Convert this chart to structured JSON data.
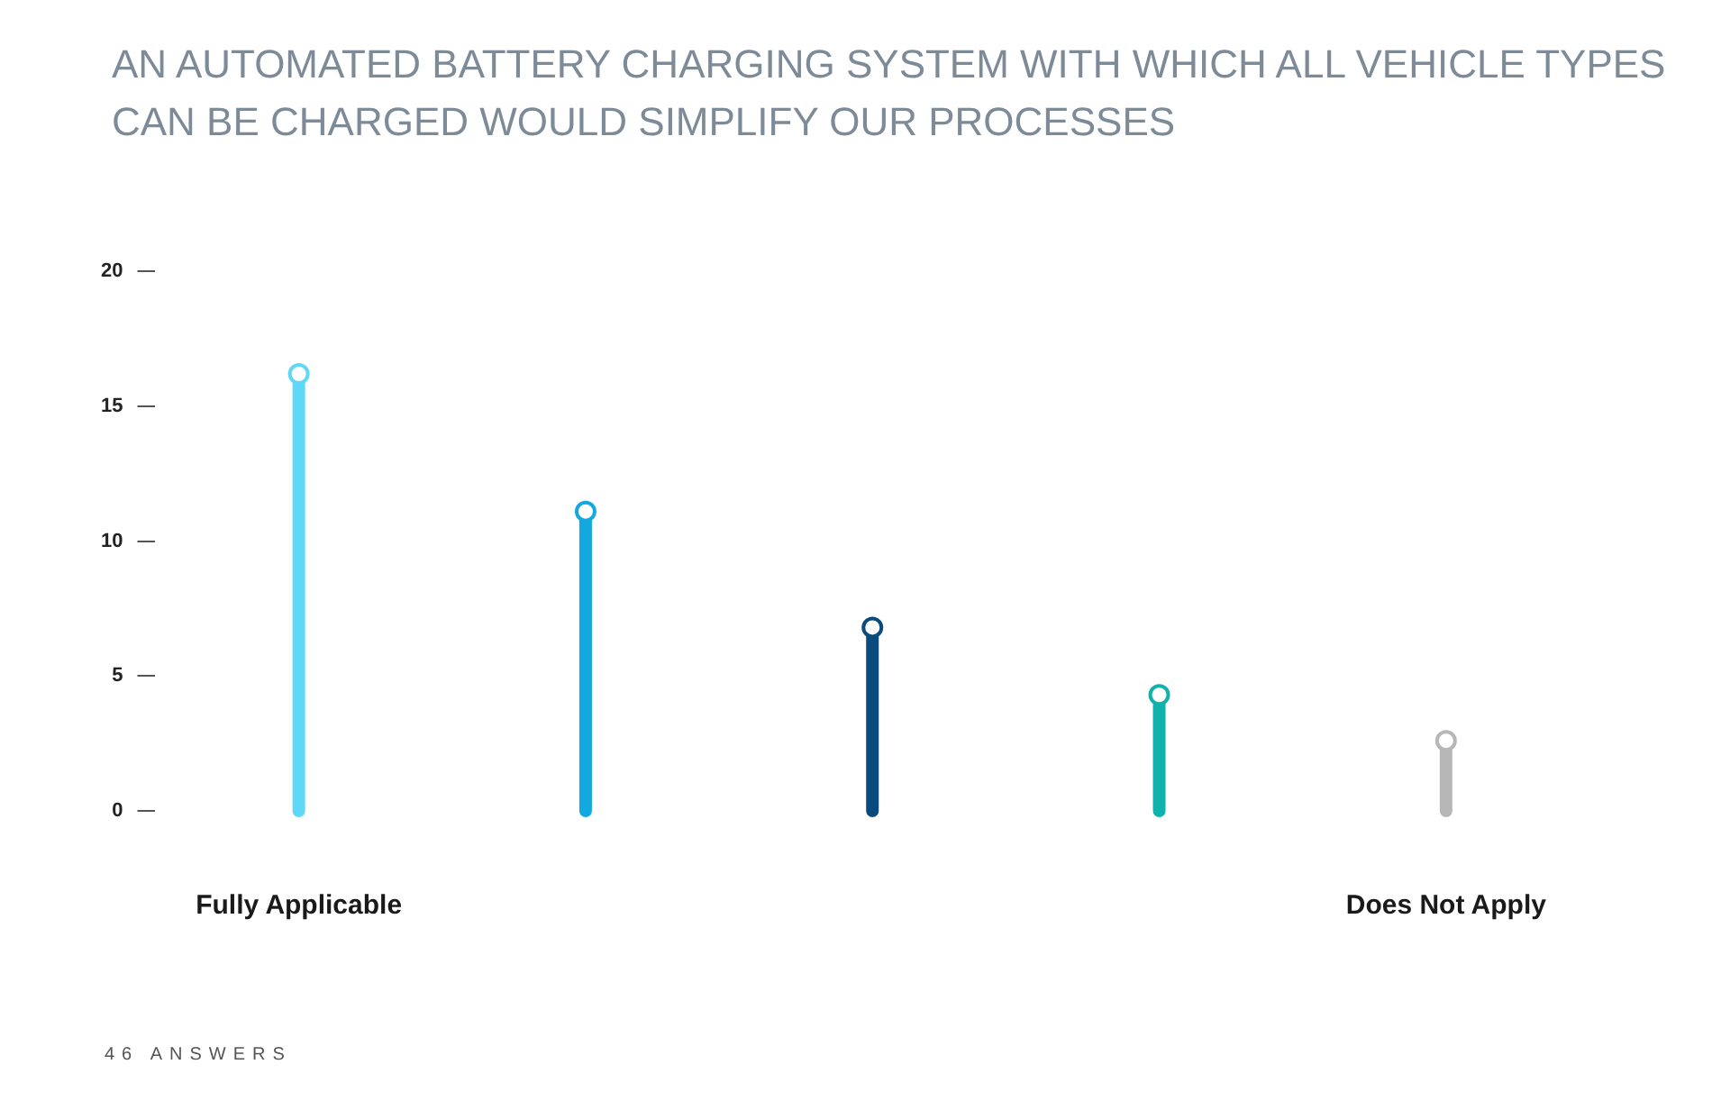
{
  "chart_data": {
    "type": "lollipop",
    "title": "AN AUTOMATED BATTERY CHARGING SYSTEM WITH WHICH ALL VEHICLE TYPES CAN BE CHARGED WOULD SIMPLIFY OUR PROCESSES",
    "categories": [
      "Fully Applicable",
      null,
      null,
      null,
      "Does Not Apply"
    ],
    "values": [
      16.2,
      11.1,
      6.8,
      4.3,
      2.6
    ],
    "colors": [
      "#5fd8f7",
      "#12a9e0",
      "#0b4a7c",
      "#0fb3ab",
      "#b7b7b7"
    ],
    "ylim": [
      0,
      20
    ],
    "yticks": [
      0,
      5,
      10,
      15,
      20
    ],
    "marker": "circle",
    "grid": false,
    "legend": false,
    "annotations": [
      "46 ANSWERS"
    ]
  }
}
